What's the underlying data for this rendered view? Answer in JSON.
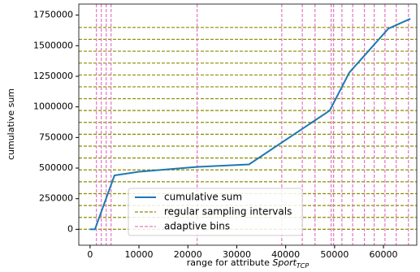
{
  "chart_data": {
    "type": "line",
    "xlabel": {
      "text": "range for attribute ",
      "var": "Sport",
      "sub": "TCP"
    },
    "ylabel": "cumulative sum",
    "xlim": [
      -2300,
      66800
    ],
    "ylim": [
      -130000,
      1840000
    ],
    "xticks": [
      0,
      10000,
      20000,
      30000,
      40000,
      50000,
      60000
    ],
    "yticks": [
      0,
      250000,
      500000,
      750000,
      1000000,
      1250000,
      1500000,
      1750000
    ],
    "series": [
      {
        "name": "cumulative sum",
        "color": "#1f77b4",
        "x": [
          0,
          1000,
          5000,
          10000,
          22000,
          32500,
          49000,
          53000,
          61000,
          65500
        ],
        "values": [
          0,
          0,
          440000,
          470000,
          510000,
          530000,
          970000,
          1280000,
          1640000,
          1720000
        ]
      }
    ],
    "hlines": {
      "name": "regular sampling intervals",
      "color": "#8c8c00",
      "values": [
        0,
        97000,
        194000,
        291000,
        388000,
        485000,
        582000,
        679000,
        776000,
        873000,
        970000,
        1067000,
        1164000,
        1261000,
        1358000,
        1455000,
        1552000,
        1649000
      ]
    },
    "vlines": {
      "name": "adaptive bins",
      "color": "#e377c2",
      "values": [
        1300,
        2300,
        3300,
        4300,
        21900,
        39200,
        43400,
        46000,
        49300,
        49800,
        51500,
        53700,
        56100,
        58100,
        60300,
        62600,
        65100
      ]
    },
    "legend": "lower center"
  }
}
